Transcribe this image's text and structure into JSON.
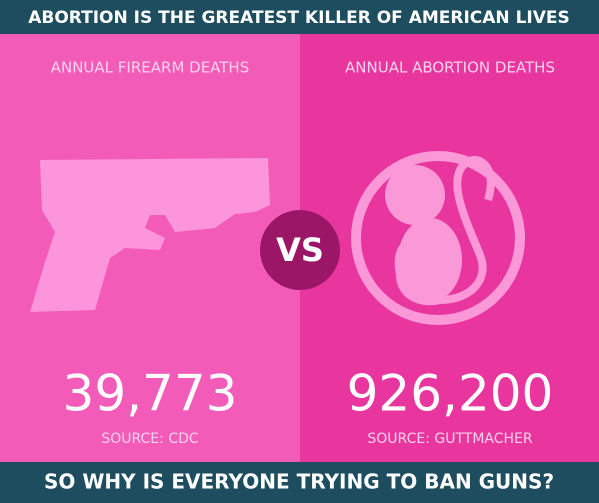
{
  "header": {
    "title": "ABORTION IS THE GREATEST KILLER OF AMERICAN LIVES"
  },
  "panels": [
    {
      "heading": "ANNUAL FIREARM DEATHS",
      "figure": "39,773",
      "source": "SOURCE: CDC"
    },
    {
      "heading": "ANNUAL ABORTION DEATHS",
      "figure": "926,200",
      "source": "SOURCE: GUTTMACHER"
    }
  ],
  "versus": "VS",
  "footer": {
    "text": "SO WHY IS EVERYONE TRYING TO BAN GUNS?"
  }
}
